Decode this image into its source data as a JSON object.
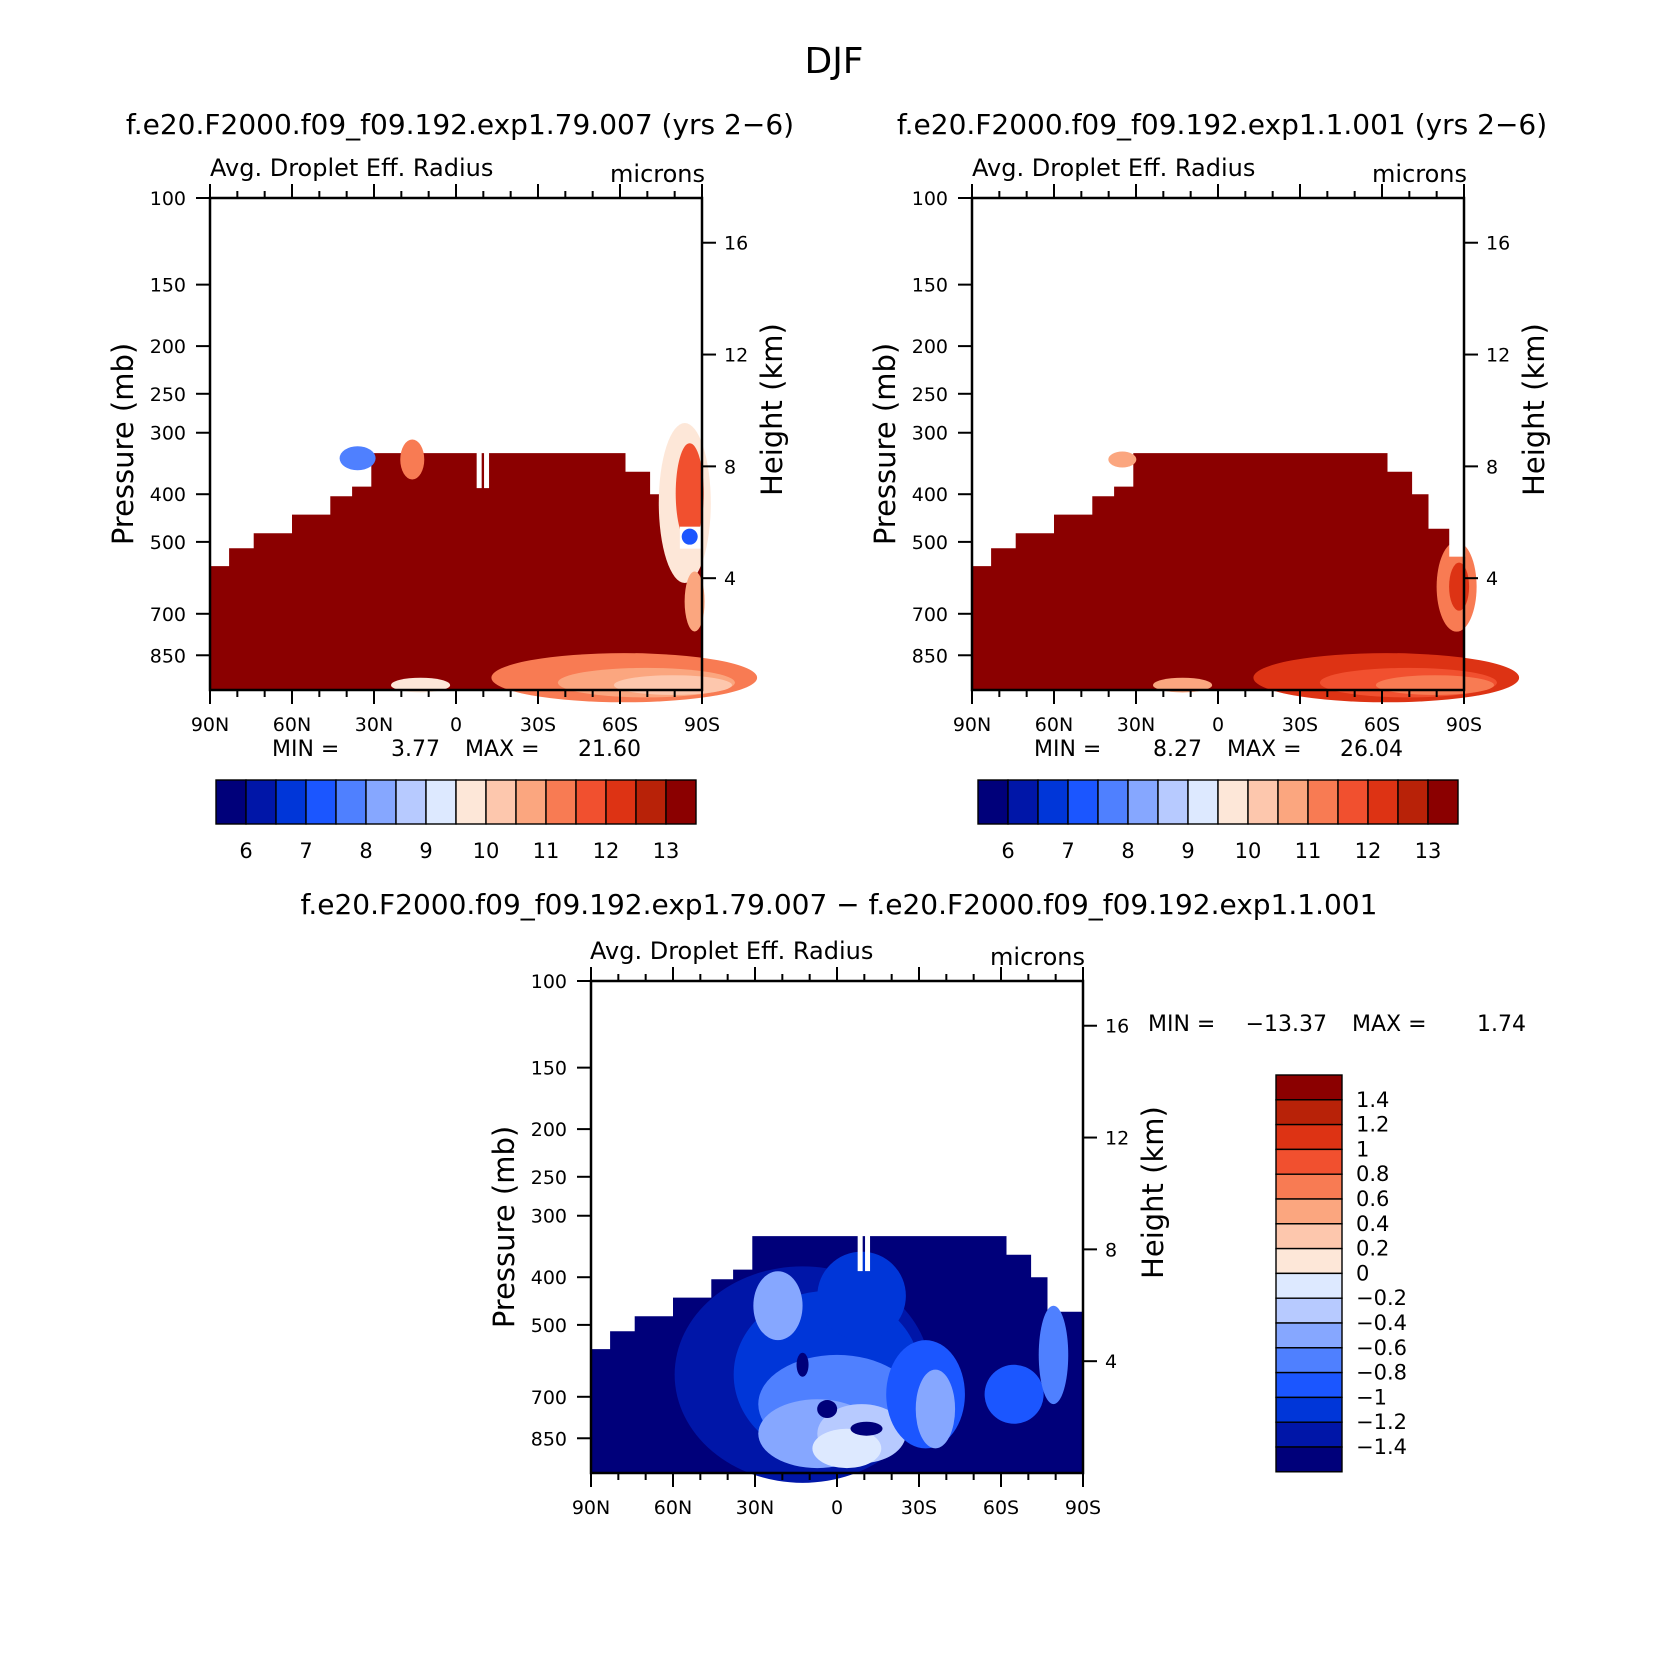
{
  "page": {
    "title": "DJF",
    "bottom_title": "f.e20.F2000.f09_f09.192.exp1.79.007 − f.e20.F2000.f09_f09.192.exp1.1.001"
  },
  "colors": {
    "plus": [
      "#fde7d8",
      "#fdc7ad",
      "#fba67f",
      "#f87b53",
      "#f1502f",
      "#dd3314",
      "#b82208",
      "#8b0000"
    ],
    "minus": [
      "#00007a",
      "#0016a8",
      "#0036d8",
      "#1b56ff",
      "#4f80ff",
      "#86a7ff",
      "#b7caff",
      "#dde9ff"
    ],
    "axis": "#000000",
    "background": "#ffffff"
  },
  "chart_data": [
    {
      "type": "contour",
      "panel_title": "f.e20.F2000.f09_f09.192.exp1.79.007 (yrs 2−6)",
      "title": "Avg. Droplet Eff. Radius",
      "units": "microns",
      "xlabel": "",
      "ylabel": "Pressure (mb)",
      "ylabel_right": "Height (km)",
      "x_ticks": [
        "90N",
        "60N",
        "30N",
        "0",
        "30S",
        "60S",
        "90S"
      ],
      "y_ticks": [
        "100",
        "150",
        "200",
        "250",
        "300",
        "400",
        "500",
        "700",
        "850"
      ],
      "y_ticks_right": [
        "16",
        "12",
        "8",
        "4"
      ],
      "ylim": [
        1000,
        100
      ],
      "min_label": "MIN =",
      "min_value": "3.77",
      "max_label": "MAX =",
      "max_value": "21.60",
      "colorbar_levels": [
        "6",
        "7",
        "8",
        "9",
        "10",
        "11",
        "12",
        "13"
      ],
      "colorbar_orientation": "horizontal",
      "colorscale": "plus"
    },
    {
      "type": "contour",
      "panel_title": "f.e20.F2000.f09_f09.192.exp1.1.001 (yrs 2−6)",
      "title": "Avg. Droplet Eff. Radius",
      "units": "microns",
      "xlabel": "",
      "ylabel": "Pressure (mb)",
      "ylabel_right": "Height (km)",
      "x_ticks": [
        "90N",
        "60N",
        "30N",
        "0",
        "30S",
        "60S",
        "90S"
      ],
      "y_ticks": [
        "100",
        "150",
        "200",
        "250",
        "300",
        "400",
        "500",
        "700",
        "850"
      ],
      "y_ticks_right": [
        "16",
        "12",
        "8",
        "4"
      ],
      "ylim": [
        1000,
        100
      ],
      "min_label": "MIN =",
      "min_value": "8.27",
      "max_label": "MAX =",
      "max_value": "26.04",
      "colorbar_levels": [
        "6",
        "7",
        "8",
        "9",
        "10",
        "11",
        "12",
        "13"
      ],
      "colorbar_orientation": "horizontal",
      "colorscale": "plus"
    },
    {
      "type": "contour",
      "title": "Avg. Droplet Eff. Radius",
      "units": "microns",
      "xlabel": "",
      "ylabel": "Pressure (mb)",
      "ylabel_right": "Height (km)",
      "x_ticks": [
        "90N",
        "60N",
        "30N",
        "0",
        "30S",
        "60S",
        "90S"
      ],
      "y_ticks": [
        "100",
        "150",
        "200",
        "250",
        "300",
        "400",
        "500",
        "700",
        "850"
      ],
      "y_ticks_right": [
        "16",
        "12",
        "8",
        "4"
      ],
      "ylim": [
        1000,
        100
      ],
      "min_label": "MIN =",
      "min_value": "−13.37",
      "max_label": "MAX =",
      "max_value": "1.74",
      "colorbar_levels": [
        "1.4",
        "1.2",
        "1",
        "0.8",
        "0.6",
        "0.4",
        "0.2",
        "0",
        "−0.2",
        "−0.4",
        "−0.6",
        "−0.8",
        "−1",
        "−1.2",
        "−1.4"
      ],
      "colorbar_orientation": "vertical",
      "colorscale": "diff"
    }
  ]
}
